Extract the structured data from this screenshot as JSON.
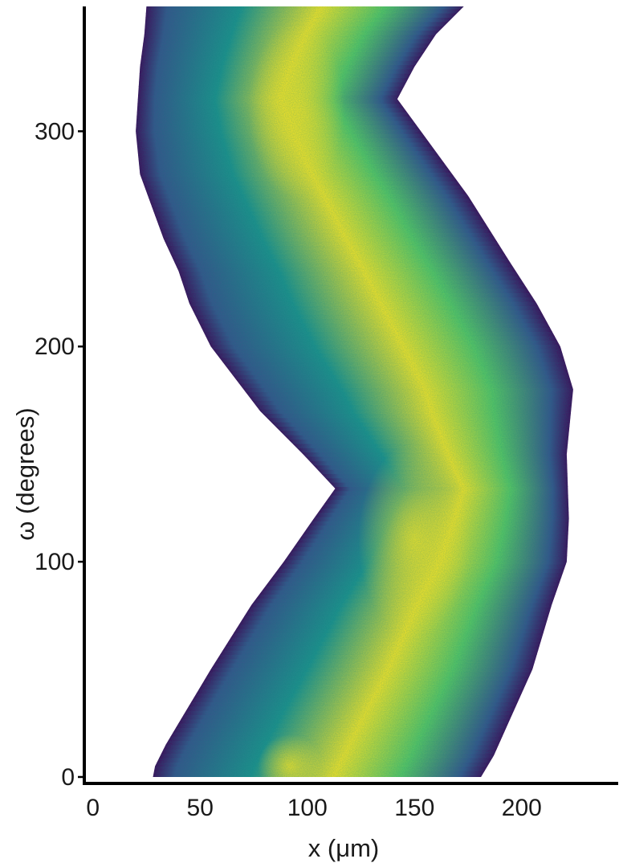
{
  "chart_data": {
    "type": "heatmap",
    "title": "",
    "xlabel": "x (μm)",
    "ylabel": "ω (degrees)",
    "xlim": [
      -4,
      245
    ],
    "ylim": [
      -3,
      358
    ],
    "x_ticks": [
      0,
      50,
      100,
      150,
      200
    ],
    "y_ticks": [
      0,
      100,
      200,
      300
    ],
    "x_tick_labels": [
      "0",
      "50",
      "100",
      "150",
      "200"
    ],
    "y_tick_labels": [
      "0",
      "100",
      "200",
      "300"
    ],
    "grid": false,
    "legend": "none",
    "colormap": "viridis",
    "colormap_colors": [
      "#440154",
      "#3b528b",
      "#21918c",
      "#5ec962",
      "#fde725"
    ],
    "boundary_left": {
      "omega": [
        0,
        5,
        15,
        30,
        50,
        80,
        100,
        120,
        134,
        150,
        170,
        200,
        220,
        235,
        250,
        280,
        300,
        330,
        345,
        358
      ],
      "x": [
        28,
        29,
        34,
        43,
        55,
        74,
        89,
        103,
        113,
        98,
        78,
        55,
        45,
        40,
        33,
        22,
        20,
        22,
        24,
        25
      ]
    },
    "boundary_right": {
      "omega": [
        0,
        10,
        30,
        50,
        80,
        100,
        120,
        150,
        180,
        200,
        220,
        240,
        270,
        300,
        315,
        330,
        345,
        358
      ],
      "x": [
        181,
        187,
        196,
        205,
        214,
        221,
        222,
        221,
        224,
        218,
        207,
        194,
        175,
        153,
        142,
        150,
        160,
        173
      ]
    }
  }
}
